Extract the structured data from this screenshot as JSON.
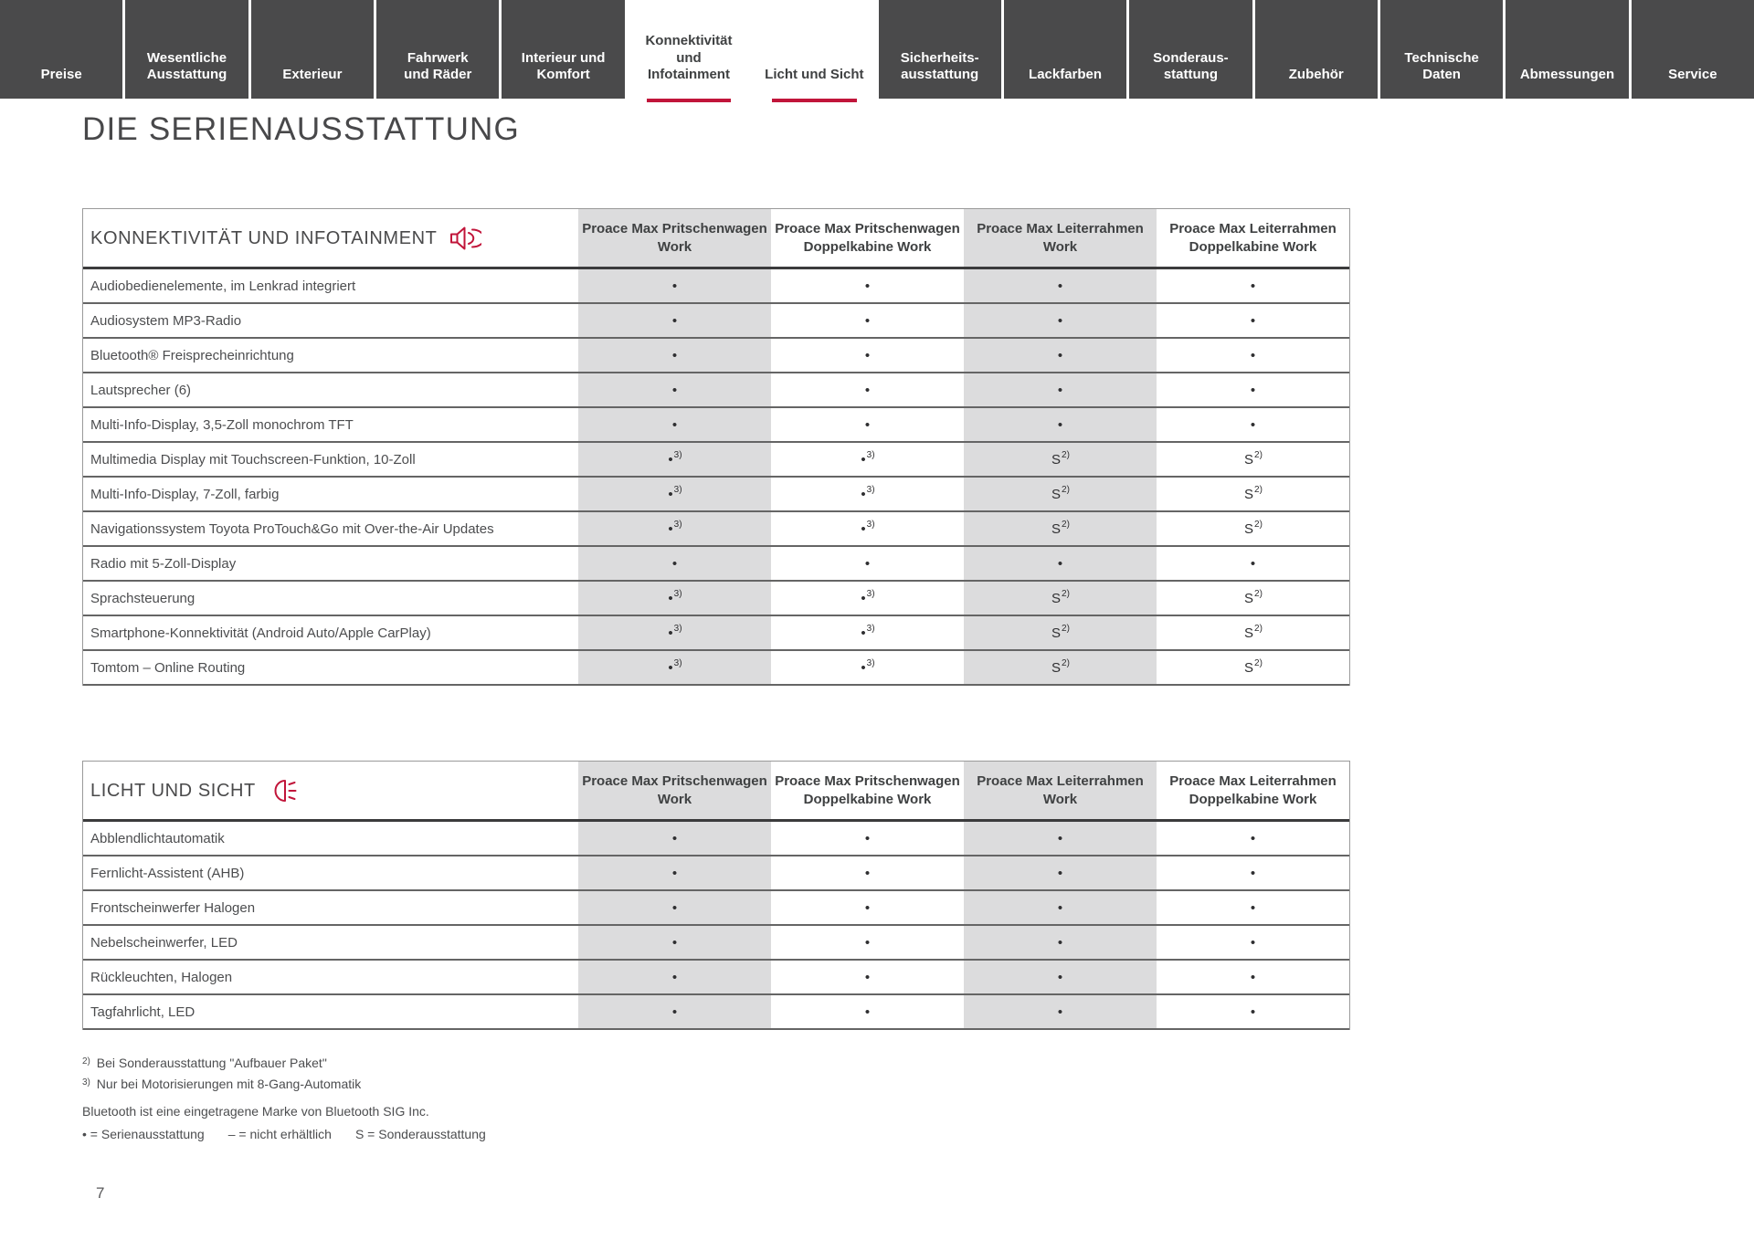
{
  "nav": {
    "tabs": [
      {
        "label": "Preise",
        "active": false
      },
      {
        "label": "Wesentliche\nAusstattung",
        "active": false
      },
      {
        "label": "Exterieur",
        "active": false
      },
      {
        "label": "Fahrwerk\nund Räder",
        "active": false
      },
      {
        "label": "Interieur und\nKomfort",
        "active": false
      },
      {
        "label": "Konnektivität\nund\nInfotainment",
        "active": true
      },
      {
        "label": "Licht und Sicht",
        "active": true
      },
      {
        "label": "Sicherheits-\nausstattung",
        "active": false
      },
      {
        "label": "Lackfarben",
        "active": false
      },
      {
        "label": "Sonderaus-\nstattung",
        "active": false
      },
      {
        "label": "Zubehör",
        "active": false
      },
      {
        "label": "Technische\nDaten",
        "active": false
      },
      {
        "label": "Abmessungen",
        "active": false
      },
      {
        "label": "Service",
        "active": false
      }
    ]
  },
  "page": {
    "title": "DIE SERIENAUSSTATTUNG",
    "page_number": "7"
  },
  "tables": [
    {
      "title": "KONNEKTIVITÄT UND INFOTAINMENT",
      "icon": "speaker-icon",
      "columns": [
        "Proace Max Pritschenwagen\nWork",
        "Proace Max Pritschenwagen\nDoppelkabine Work",
        "Proace Max Leiterrahmen\nWork",
        "Proace Max Leiterrahmen\nDoppelkabine Work"
      ],
      "rows": [
        {
          "label": "Audiobedienelemente, im Lenkrad integriert",
          "values": [
            {
              "t": "•"
            },
            {
              "t": "•"
            },
            {
              "t": "•"
            },
            {
              "t": "•"
            }
          ]
        },
        {
          "label": "Audiosystem MP3-Radio",
          "values": [
            {
              "t": "•"
            },
            {
              "t": "•"
            },
            {
              "t": "•"
            },
            {
              "t": "•"
            }
          ]
        },
        {
          "label": "Bluetooth® Freisprecheinrichtung",
          "values": [
            {
              "t": "•"
            },
            {
              "t": "•"
            },
            {
              "t": "•"
            },
            {
              "t": "•"
            }
          ]
        },
        {
          "label": "Lautsprecher (6)",
          "values": [
            {
              "t": "•"
            },
            {
              "t": "•"
            },
            {
              "t": "•"
            },
            {
              "t": "•"
            }
          ]
        },
        {
          "label": "Multi-Info-Display, 3,5-Zoll monochrom TFT",
          "values": [
            {
              "t": "•"
            },
            {
              "t": "•"
            },
            {
              "t": "•"
            },
            {
              "t": "•"
            }
          ]
        },
        {
          "label": "Multimedia Display mit Touchscreen-Funktion, 10-Zoll",
          "values": [
            {
              "t": "•",
              "sup": "3)"
            },
            {
              "t": "•",
              "sup": "3)"
            },
            {
              "t": "S",
              "sup": "2)"
            },
            {
              "t": "S",
              "sup": "2)"
            }
          ]
        },
        {
          "label": "Multi-Info-Display, 7-Zoll, farbig",
          "values": [
            {
              "t": "•",
              "sup": "3)"
            },
            {
              "t": "•",
              "sup": "3)"
            },
            {
              "t": "S",
              "sup": "2)"
            },
            {
              "t": "S",
              "sup": "2)"
            }
          ]
        },
        {
          "label": "Navigationssystem Toyota ProTouch&Go mit Over-the-Air Updates",
          "values": [
            {
              "t": "•",
              "sup": "3)"
            },
            {
              "t": "•",
              "sup": "3)"
            },
            {
              "t": "S",
              "sup": "2)"
            },
            {
              "t": "S",
              "sup": "2)"
            }
          ]
        },
        {
          "label": "Radio mit 5-Zoll-Display",
          "values": [
            {
              "t": "•"
            },
            {
              "t": "•"
            },
            {
              "t": "•"
            },
            {
              "t": "•"
            }
          ]
        },
        {
          "label": "Sprachsteuerung",
          "values": [
            {
              "t": "•",
              "sup": "3)"
            },
            {
              "t": "•",
              "sup": "3)"
            },
            {
              "t": "S",
              "sup": "2)"
            },
            {
              "t": "S",
              "sup": "2)"
            }
          ]
        },
        {
          "label": "Smartphone-Konnektivität (Android Auto/Apple CarPlay)",
          "values": [
            {
              "t": "•",
              "sup": "3)"
            },
            {
              "t": "•",
              "sup": "3)"
            },
            {
              "t": "S",
              "sup": "2)"
            },
            {
              "t": "S",
              "sup": "2)"
            }
          ]
        },
        {
          "label": "Tomtom – Online Routing",
          "values": [
            {
              "t": "•",
              "sup": "3)"
            },
            {
              "t": "•",
              "sup": "3)"
            },
            {
              "t": "S",
              "sup": "2)"
            },
            {
              "t": "S",
              "sup": "2)"
            }
          ]
        }
      ]
    },
    {
      "title": "LICHT UND SICHT",
      "icon": "headlight-icon",
      "columns": [
        "Proace Max Pritschenwagen\nWork",
        "Proace Max Pritschenwagen\nDoppelkabine Work",
        "Proace Max Leiterrahmen\nWork",
        "Proace Max Leiterrahmen\nDoppelkabine Work"
      ],
      "rows": [
        {
          "label": "Abblendlichtautomatik",
          "values": [
            {
              "t": "•"
            },
            {
              "t": "•"
            },
            {
              "t": "•"
            },
            {
              "t": "•"
            }
          ]
        },
        {
          "label": "Fernlicht-Assistent (AHB)",
          "values": [
            {
              "t": "•"
            },
            {
              "t": "•"
            },
            {
              "t": "•"
            },
            {
              "t": "•"
            }
          ]
        },
        {
          "label": "Frontscheinwerfer Halogen",
          "values": [
            {
              "t": "•"
            },
            {
              "t": "•"
            },
            {
              "t": "•"
            },
            {
              "t": "•"
            }
          ]
        },
        {
          "label": "Nebelscheinwerfer, LED",
          "values": [
            {
              "t": "•"
            },
            {
              "t": "•"
            },
            {
              "t": "•"
            },
            {
              "t": "•"
            }
          ]
        },
        {
          "label": "Rückleuchten, Halogen",
          "values": [
            {
              "t": "•"
            },
            {
              "t": "•"
            },
            {
              "t": "•"
            },
            {
              "t": "•"
            }
          ]
        },
        {
          "label": "Tagfahrlicht, LED",
          "values": [
            {
              "t": "•"
            },
            {
              "t": "•"
            },
            {
              "t": "•"
            },
            {
              "t": "•"
            }
          ]
        }
      ]
    }
  ],
  "footnotes": [
    {
      "sup": "2)",
      "text": "Bei Sonderausstattung \"Aufbauer Paket\""
    },
    {
      "sup": "3)",
      "text": "Nur bei Motorisierungen mit 8-Gang-Automatik"
    }
  ],
  "plain_note": "Bluetooth ist eine eingetragene Marke von Bluetooth SIG Inc.",
  "legend": [
    "• = Serienausstattung",
    "– = nicht erhältlich",
    "S = Sonderausstattung"
  ],
  "colors": {
    "accent": "#c1153a",
    "tab_background": "#4a4a4b",
    "column_shade": "#dcdcdd"
  }
}
